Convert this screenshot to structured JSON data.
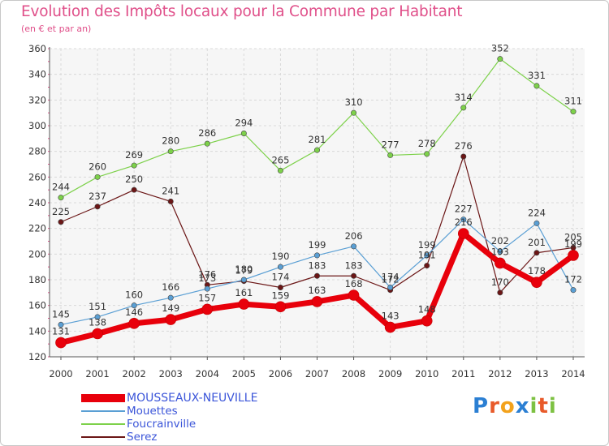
{
  "chart_data": {
    "type": "line",
    "title": "Evolution des Impôts locaux pour la Commune par Habitant",
    "subtitle": "(en € et par an)",
    "xlabel": "",
    "ylabel": "",
    "ylim": [
      120,
      360
    ],
    "yticks": [
      120,
      140,
      160,
      180,
      200,
      220,
      240,
      260,
      280,
      300,
      320,
      340,
      360
    ],
    "grid": true,
    "legend_position": "bottom-left",
    "categories": [
      "2000",
      "2001",
      "2002",
      "2003",
      "2004",
      "2005",
      "2006",
      "2007",
      "2008",
      "2009",
      "2010",
      "2011",
      "2012",
      "2013",
      "2014"
    ],
    "series": [
      {
        "name": "MOUSSEAUX-NEUVILLE",
        "color": "#e8000b",
        "values": [
          131,
          138,
          146,
          149,
          157,
          161,
          159,
          163,
          168,
          143,
          148,
          216,
          193,
          178,
          199
        ]
      },
      {
        "name": "Mouettes",
        "color": "#5a9fd4",
        "values": [
          145,
          151,
          160,
          166,
          173,
          180,
          190,
          199,
          206,
          174,
          199,
          227,
          202,
          224,
          172
        ]
      },
      {
        "name": "Foucrainville",
        "color": "#7dd14a",
        "values": [
          244,
          260,
          269,
          280,
          286,
          294,
          265,
          281,
          310,
          277,
          278,
          314,
          352,
          331,
          311
        ]
      },
      {
        "name": "Serez",
        "color": "#6b1616",
        "values": [
          225,
          237,
          250,
          241,
          176,
          179,
          174,
          183,
          183,
          172,
          191,
          276,
          170,
          201,
          205
        ]
      }
    ]
  },
  "logo": {
    "text": "Proxiti",
    "letters": [
      "P",
      "r",
      "o",
      "x",
      "i",
      "t",
      "i"
    ],
    "colors": [
      "#2b7fd3",
      "#e85a2a",
      "#f3a21c",
      "#2b7fd3",
      "#7dc142",
      "#e85a2a",
      "#7dc142"
    ]
  }
}
